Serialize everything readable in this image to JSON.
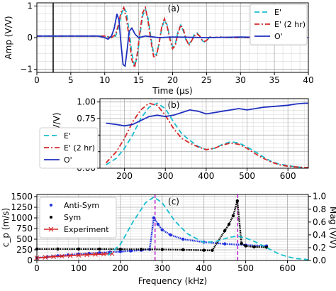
{
  "chart_data": [
    {
      "panel": "(a)",
      "type": "line",
      "xlabel": "Time (μs)",
      "ylabel": "Amp (V/V)",
      "xlim": [
        0,
        40
      ],
      "ylim": [
        -1.1,
        1.1
      ],
      "xticks": [
        "0",
        "5",
        "10",
        "15",
        "20",
        "25",
        "30",
        "35",
        "40"
      ],
      "yticks": [
        "−1",
        "0",
        "1"
      ],
      "grid": true,
      "legend_position": "top-right",
      "marker_line_x": 2.4,
      "series": [
        {
          "name": "E'",
          "color": "#17becf",
          "dash": "dashed",
          "x": [
            0,
            10,
            11,
            11.6,
            12,
            12.4,
            12.8,
            13.2,
            13.6,
            14.0,
            14.4,
            14.8,
            15.2,
            15.6,
            16.0,
            16.4,
            16.8,
            17.2,
            17.6,
            18.0,
            18.4,
            18.8,
            19.2,
            19.6,
            20.0,
            20.4,
            20.8,
            21.2,
            21.6,
            22.0,
            22.4,
            22.8,
            23.2,
            23.6,
            24.0,
            24.4,
            24.8,
            25.2,
            25.6,
            26,
            27,
            28,
            30,
            40
          ],
          "y": [
            0.05,
            0.05,
            0.0,
            0.05,
            0.3,
            0.7,
            0.95,
            0.8,
            0.2,
            -0.5,
            -0.9,
            -0.6,
            0.1,
            0.7,
            0.9,
            0.6,
            0.0,
            -0.5,
            -0.55,
            -0.2,
            0.3,
            0.55,
            0.4,
            0.0,
            -0.3,
            -0.2,
            0.2,
            0.4,
            0.2,
            -0.1,
            -0.2,
            -0.1,
            0.1,
            0.15,
            0.05,
            -0.1,
            -0.15,
            -0.05,
            0.05,
            0.0,
            0.02,
            0.0,
            0.0,
            0.0
          ]
        },
        {
          "name": "E' (2 hr)",
          "color": "#d62728",
          "dash": "dashdot",
          "x": [
            0,
            10,
            11,
            11.6,
            12,
            12.4,
            12.8,
            13.2,
            13.6,
            14.0,
            14.4,
            14.8,
            15.2,
            15.6,
            16.0,
            16.4,
            16.8,
            17.2,
            17.6,
            18.0,
            18.4,
            18.8,
            19.2,
            19.6,
            20.0,
            20.4,
            20.8,
            21.2,
            21.6,
            22.0,
            22.4,
            22.8,
            23.2,
            23.6,
            24.0,
            24.4,
            24.8,
            25.2,
            25.6,
            26,
            27,
            28,
            30,
            40
          ],
          "y": [
            0.05,
            0.05,
            0.0,
            0.1,
            0.4,
            0.8,
            0.95,
            0.6,
            0.0,
            -0.7,
            -0.95,
            -0.5,
            0.2,
            0.8,
            0.95,
            0.5,
            -0.1,
            -0.6,
            -0.6,
            -0.2,
            0.35,
            0.6,
            0.35,
            -0.05,
            -0.35,
            -0.25,
            0.15,
            0.4,
            0.25,
            -0.05,
            -0.25,
            -0.1,
            0.05,
            0.12,
            0.05,
            -0.1,
            -0.12,
            -0.05,
            0.03,
            0.0,
            0.02,
            0.0,
            0.0,
            0.0
          ]
        },
        {
          "name": "O'",
          "color": "#1f2fbf",
          "dash": "solid",
          "x": [
            0,
            9,
            10,
            10.5,
            11,
            11.4,
            11.8,
            12.1,
            12.4,
            12.7,
            13.0,
            13.3,
            13.6,
            14.0,
            14.5,
            15,
            16,
            18,
            20,
            25,
            30,
            35,
            40
          ],
          "y": [
            0.05,
            0.05,
            0.0,
            -0.05,
            0.05,
            0.3,
            0.75,
            0.55,
            -0.2,
            -0.85,
            -0.9,
            -0.4,
            0.2,
            0.3,
            0.1,
            0.0,
            0.05,
            0.0,
            0.02,
            0.0,
            0.02,
            0.0,
            0.0
          ]
        }
      ]
    },
    {
      "panel": "(b)",
      "type": "line",
      "xlabel": "",
      "ylabel": "Mag (V/V)",
      "xlim": [
        140,
        650
      ],
      "ylim": [
        0,
        1.05
      ],
      "xticks": [
        "200",
        "300",
        "400",
        "500",
        "600"
      ],
      "yticks": [
        "0.00",
        "0.25",
        "0.50",
        "0.75",
        "1.00"
      ],
      "grid": true,
      "legend_position": "lower-left",
      "series": [
        {
          "name": "E'",
          "color": "#17becf",
          "dash": "dashed",
          "x": [
            155,
            180,
            200,
            220,
            240,
            260,
            280,
            300,
            320,
            340,
            360,
            380,
            400,
            420,
            440,
            460,
            480,
            500,
            520,
            540,
            560,
            580,
            600,
            620,
            640,
            650
          ],
          "y": [
            0.05,
            0.15,
            0.3,
            0.5,
            0.75,
            0.92,
            0.98,
            0.9,
            0.7,
            0.52,
            0.42,
            0.33,
            0.28,
            0.3,
            0.36,
            0.4,
            0.38,
            0.32,
            0.25,
            0.17,
            0.1,
            0.06,
            0.04,
            0.02,
            0.01,
            0.01
          ]
        },
        {
          "name": "E' (2 hr)",
          "color": "#d62728",
          "dash": "dashdot",
          "x": [
            155,
            180,
            200,
            220,
            240,
            260,
            280,
            300,
            320,
            340,
            360,
            380,
            400,
            420,
            440,
            460,
            480,
            500,
            520,
            540,
            560,
            580,
            600,
            620,
            640,
            650
          ],
          "y": [
            0.08,
            0.25,
            0.45,
            0.7,
            0.88,
            0.98,
            0.95,
            0.8,
            0.6,
            0.45,
            0.38,
            0.32,
            0.28,
            0.3,
            0.35,
            0.38,
            0.36,
            0.3,
            0.22,
            0.15,
            0.09,
            0.05,
            0.03,
            0.02,
            0.01,
            0.01
          ]
        },
        {
          "name": "O'",
          "color": "#1f2fbf",
          "dash": "solid",
          "x": [
            155,
            180,
            200,
            220,
            240,
            260,
            280,
            300,
            320,
            340,
            360,
            380,
            400,
            420,
            440,
            460,
            480,
            500,
            520,
            540,
            560,
            580,
            600,
            620,
            640,
            650
          ],
          "y": [
            0.68,
            0.66,
            0.64,
            0.66,
            0.72,
            0.78,
            0.8,
            0.78,
            0.8,
            0.84,
            0.88,
            0.86,
            0.82,
            0.84,
            0.86,
            0.88,
            0.9,
            0.88,
            0.9,
            0.92,
            0.93,
            0.94,
            0.95,
            0.97,
            0.98,
            0.98
          ]
        }
      ]
    },
    {
      "panel": "(c)",
      "type": "scatter",
      "xlabel": "Frequency (kHz)",
      "ylabel": "c_p (m/s)",
      "ylabel_right": "Mag (V/V)",
      "xlim": [
        0,
        650
      ],
      "ylim": [
        0,
        1550
      ],
      "ylim_right": [
        0,
        1.03
      ],
      "xticks": [
        "0",
        "100",
        "200",
        "300",
        "400",
        "500",
        "600"
      ],
      "yticks": [
        "0",
        "250",
        "500",
        "750",
        "1000",
        "1250",
        "1500"
      ],
      "yticks_right": [
        "0.0",
        "0.2",
        "0.4",
        "0.6",
        "0.8",
        "1.0"
      ],
      "grid": true,
      "legend_position": "top-left",
      "vlines_x": [
        283,
        481
      ],
      "series": [
        {
          "name": "Anti-Sym",
          "color": "#1f2fdf",
          "marker": "dot",
          "x": [
            0,
            25,
            50,
            75,
            100,
            125,
            150,
            175,
            200,
            225,
            250,
            270,
            280,
            290,
            300,
            320,
            350,
            400,
            450,
            500,
            550
          ],
          "y": [
            60,
            85,
            110,
            130,
            150,
            165,
            180,
            195,
            210,
            225,
            240,
            260,
            1000,
            850,
            720,
            600,
            500,
            430,
            390,
            360,
            340
          ]
        },
        {
          "name": "Sym",
          "color": "#000000",
          "marker": "dot",
          "x": [
            0,
            50,
            100,
            150,
            200,
            250,
            300,
            350,
            400,
            420,
            450,
            460,
            470,
            480,
            490,
            500,
            520,
            550
          ],
          "y": [
            270,
            270,
            270,
            268,
            265,
            262,
            258,
            252,
            240,
            238,
            700,
            850,
            1050,
            1400,
            400,
            340,
            320,
            310
          ]
        },
        {
          "name": "Experiment",
          "color": "#d62728",
          "marker": "x",
          "x": [
            0,
            20,
            40,
            60,
            80,
            100,
            120,
            140,
            160,
            180
          ],
          "y": [
            60,
            75,
            90,
            100,
            115,
            125,
            135,
            145,
            150,
            160
          ]
        },
        {
          "name": "",
          "axis": "right",
          "color": "#17becf",
          "dash": "dashed",
          "x": [
            170,
            200,
            230,
            260,
            280,
            300,
            330,
            360,
            400,
            430,
            460,
            480,
            500,
            520,
            550,
            580,
            600,
            620,
            640,
            650
          ],
          "y": [
            0.08,
            0.25,
            0.6,
            0.9,
            0.99,
            0.9,
            0.62,
            0.42,
            0.28,
            0.3,
            0.36,
            0.38,
            0.35,
            0.3,
            0.2,
            0.1,
            0.06,
            0.03,
            0.02,
            0.01
          ]
        }
      ]
    }
  ]
}
